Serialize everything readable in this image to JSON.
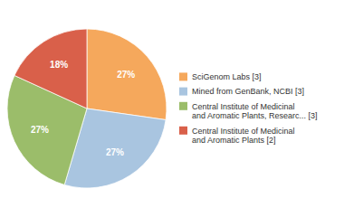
{
  "chart_data": {
    "type": "pie",
    "categories": [
      "SciGenom Labs [3]",
      "Mined from GenBank, NCBI [3]",
      "Central Institute of Medicinal\nand Aromatic Plants, Researc... [3]",
      "Central Institute of Medicinal\nand Aromatic Plants [2]"
    ],
    "values": [
      27,
      27,
      27,
      18
    ],
    "value_labels": [
      "27%",
      "27%",
      "27%",
      "18%"
    ],
    "colors": [
      "#F5A85C",
      "#A9C5E0",
      "#9BBD6A",
      "#D9604A"
    ],
    "data_labels": true,
    "legend": "right"
  }
}
